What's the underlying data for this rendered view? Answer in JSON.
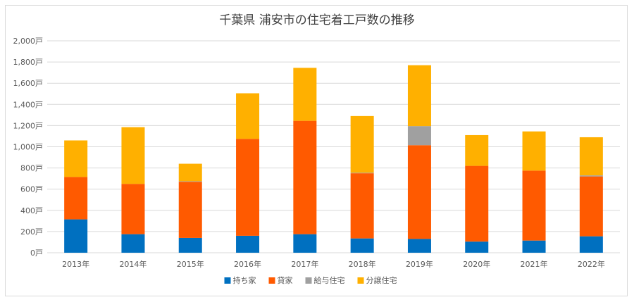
{
  "chart_data": {
    "type": "bar",
    "stacked": true,
    "title": "千葉県 浦安市の住宅着工戸数の推移",
    "categories": [
      "2013年",
      "2014年",
      "2015年",
      "2016年",
      "2017年",
      "2018年",
      "2019年",
      "2020年",
      "2021年",
      "2022年"
    ],
    "series": [
      {
        "name": "持ち家",
        "color": "#0070c0",
        "values": [
          315,
          175,
          140,
          160,
          175,
          135,
          130,
          105,
          115,
          155
        ]
      },
      {
        "name": "貸家",
        "color": "#ff5a00",
        "values": [
          400,
          475,
          530,
          915,
          1070,
          615,
          885,
          715,
          660,
          565
        ]
      },
      {
        "name": "給与住宅",
        "color": "#a0a0a0",
        "values": [
          0,
          0,
          5,
          0,
          0,
          5,
          180,
          0,
          0,
          10
        ]
      },
      {
        "name": "分譲住宅",
        "color": "#ffb000",
        "values": [
          345,
          535,
          165,
          430,
          500,
          535,
          575,
          290,
          370,
          360
        ]
      }
    ],
    "ylim": [
      0,
      2000
    ],
    "yticks": [
      "0戸",
      "200戸",
      "400戸",
      "600戸",
      "800戸",
      "1,000戸",
      "1,200戸",
      "1,400戸",
      "1,600戸",
      "1,800戸",
      "2,000戸"
    ],
    "ytick_values": [
      0,
      200,
      400,
      600,
      800,
      1000,
      1200,
      1400,
      1600,
      1800,
      2000
    ],
    "grid": true,
    "legend_position": "bottom"
  }
}
